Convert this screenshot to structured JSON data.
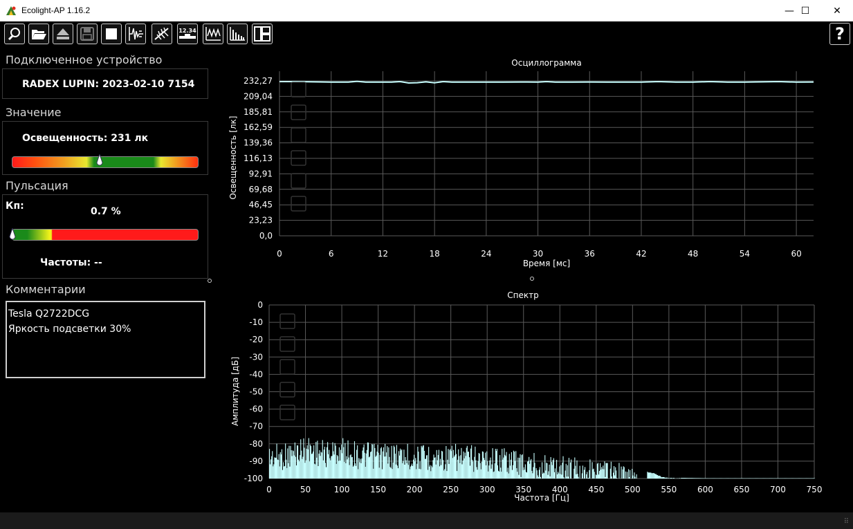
{
  "window": {
    "title": "Ecolight-AP 1.16.2",
    "controls": {
      "minimize": "—",
      "maximize": "☐",
      "close": "✕"
    }
  },
  "toolbar": {
    "buttons": [
      {
        "name": "search-device-button",
        "icon": "magnifier-icon"
      },
      {
        "name": "open-file-button",
        "icon": "folder-open-icon"
      },
      {
        "name": "eject-button",
        "icon": "eject-icon"
      },
      {
        "name": "save-button",
        "icon": "floppy-disk-icon"
      },
      {
        "name": "stop-button",
        "icon": "stop-square-icon"
      },
      {
        "name": "pulse-mode-button",
        "icon": "pulse-icon"
      },
      {
        "name": "flicker-mode-button",
        "icon": "lamp-rays-icon"
      },
      {
        "name": "digital-readout-button",
        "icon": "digital-display-icon",
        "text": "12.34"
      },
      {
        "name": "oscillogram-button",
        "icon": "waveform-icon"
      },
      {
        "name": "spectrum-button",
        "icon": "spectrum-bars-icon"
      },
      {
        "name": "layout-button",
        "icon": "layout-panels-icon"
      }
    ],
    "help_label": "?"
  },
  "left": {
    "device_section": "Подключенное устройство",
    "device_name": "RADEX LUPIN: 2023-02-10 7154",
    "value_section": "Значение",
    "illuminance_text": "Освещенность: 231 лк",
    "illuminance_fraction": 0.47,
    "pulsation_section": "Пульсация",
    "kp_label": "Кп:",
    "kp_value": "0.7 %",
    "pulsation_fraction": 0.0,
    "frequency_text": "Частоты: --",
    "comments_section": "Комментарии",
    "comments_lines": [
      "Tesla Q2722DCG",
      "Яркость подсветки 30%"
    ]
  },
  "colors": {
    "bar_green": "#1a8a1a",
    "bar_red": "#ff1a1a",
    "bar_yellow": "#f2f21a",
    "trace": "#c8ffff",
    "grid": "#5a5a5a"
  },
  "chart_data": [
    {
      "type": "line",
      "title": "Осциллограмма",
      "xlabel": "Время [мс]",
      "ylabel": "Освещенность [лк]",
      "x_ticks": [
        "0",
        "6",
        "12",
        "18",
        "24",
        "30",
        "36",
        "42",
        "48",
        "54",
        "60"
      ],
      "y_ticks": [
        "0,0",
        "23,23",
        "46,45",
        "69,68",
        "92,91",
        "116,13",
        "139,36",
        "162,59",
        "185,81",
        "209,04",
        "232,27"
      ],
      "xlim": [
        0,
        62
      ],
      "ylim": [
        0,
        232.27
      ],
      "grid": true,
      "series": [
        {
          "x": [
            0,
            2,
            4,
            6,
            8,
            9,
            10,
            11,
            12,
            13,
            14,
            15,
            16,
            17,
            18,
            19,
            20,
            22,
            24,
            26,
            28,
            30,
            31,
            32,
            34,
            36,
            38,
            40,
            42,
            44,
            46,
            48,
            50,
            52,
            54,
            56,
            58,
            60,
            62
          ],
          "y": [
            231.2,
            231.2,
            230.8,
            230.5,
            230.5,
            231.6,
            230.4,
            230.4,
            230.4,
            230.4,
            231.2,
            229.2,
            229.6,
            230.8,
            229.4,
            231.2,
            230.4,
            230.4,
            230.4,
            230.4,
            230.6,
            230.4,
            231.2,
            230.4,
            230.4,
            230.6,
            230.4,
            230.4,
            230.4,
            231.2,
            230.4,
            230.4,
            231.2,
            230.4,
            230.4,
            230.8,
            231.2,
            230.4,
            230.6
          ]
        }
      ]
    },
    {
      "type": "bar",
      "title": "Спектр",
      "xlabel": "Частота [Гц]",
      "ylabel": "Амплитуда [дБ]",
      "x_ticks": [
        "0",
        "50",
        "100",
        "150",
        "200",
        "250",
        "300",
        "350",
        "400",
        "450",
        "500",
        "550",
        "600",
        "650",
        "700",
        "750"
      ],
      "y_ticks": [
        "0",
        "-10",
        "-20",
        "-30",
        "-40",
        "-50",
        "-60",
        "-70",
        "-80",
        "-90",
        "-100"
      ],
      "xlim": [
        0,
        750
      ],
      "ylim": [
        -100,
        0
      ],
      "grid": true,
      "envelope_hz": [
        0,
        25,
        50,
        75,
        100,
        125,
        150,
        175,
        200,
        225,
        250,
        275,
        300,
        325,
        350,
        375,
        400,
        425,
        450,
        475,
        500,
        510,
        520,
        530,
        540,
        550,
        600,
        650,
        700,
        750
      ],
      "envelope_db": [
        -80,
        -79,
        -75,
        -78,
        -76,
        -79,
        -79,
        -79,
        -80,
        -80,
        -80,
        -80,
        -81,
        -81,
        -84,
        -85,
        -86,
        -87,
        -88,
        -90,
        -93,
        -95,
        -96,
        -97,
        -99,
        -99.5,
        -99.8,
        -99.8,
        -99.8,
        -99.8
      ]
    }
  ]
}
